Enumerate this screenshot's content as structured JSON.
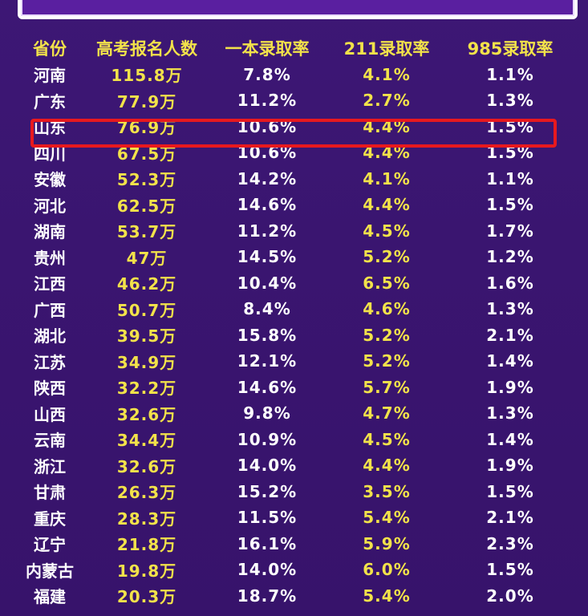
{
  "table": {
    "headers": [
      "省份",
      "高考报名人数",
      "一本录取率",
      "211录取率",
      "985录取率"
    ],
    "rows": [
      {
        "province": "河南",
        "applicants": "115.8万",
        "rate_tier1": "7.8%",
        "rate_211": "4.1%",
        "rate_985": "1.1%"
      },
      {
        "province": "广东",
        "applicants": "77.9万",
        "rate_tier1": "11.2%",
        "rate_211": "2.7%",
        "rate_985": "1.3%"
      },
      {
        "province": "山东",
        "applicants": "76.9万",
        "rate_tier1": "10.6%",
        "rate_211": "4.4%",
        "rate_985": "1.5%"
      },
      {
        "province": "四川",
        "applicants": "67.5万",
        "rate_tier1": "10.6%",
        "rate_211": "4.4%",
        "rate_985": "1.5%"
      },
      {
        "province": "安徽",
        "applicants": "52.3万",
        "rate_tier1": "14.2%",
        "rate_211": "4.1%",
        "rate_985": "1.1%"
      },
      {
        "province": "河北",
        "applicants": "62.5万",
        "rate_tier1": "14.6%",
        "rate_211": "4.4%",
        "rate_985": "1.5%"
      },
      {
        "province": "湖南",
        "applicants": "53.7万",
        "rate_tier1": "11.2%",
        "rate_211": "4.5%",
        "rate_985": "1.7%"
      },
      {
        "province": "贵州",
        "applicants": "47万",
        "rate_tier1": "14.5%",
        "rate_211": "5.2%",
        "rate_985": "1.2%"
      },
      {
        "province": "江西",
        "applicants": "46.2万",
        "rate_tier1": "10.4%",
        "rate_211": "6.5%",
        "rate_985": "1.6%"
      },
      {
        "province": "广西",
        "applicants": "50.7万",
        "rate_tier1": "8.4%",
        "rate_211": "4.6%",
        "rate_985": "1.3%"
      },
      {
        "province": "湖北",
        "applicants": "39.5万",
        "rate_tier1": "15.8%",
        "rate_211": "5.2%",
        "rate_985": "2.1%"
      },
      {
        "province": "江苏",
        "applicants": "34.9万",
        "rate_tier1": "12.1%",
        "rate_211": "5.2%",
        "rate_985": "1.4%"
      },
      {
        "province": "陕西",
        "applicants": "32.2万",
        "rate_tier1": "14.6%",
        "rate_211": "5.7%",
        "rate_985": "1.9%"
      },
      {
        "province": "山西",
        "applicants": "32.6万",
        "rate_tier1": "9.8%",
        "rate_211": "4.7%",
        "rate_985": "1.3%"
      },
      {
        "province": "云南",
        "applicants": "34.4万",
        "rate_tier1": "10.9%",
        "rate_211": "4.5%",
        "rate_985": "1.4%"
      },
      {
        "province": "浙江",
        "applicants": "32.6万",
        "rate_tier1": "14.0%",
        "rate_211": "4.4%",
        "rate_985": "1.9%"
      },
      {
        "province": "甘肃",
        "applicants": "26.3万",
        "rate_tier1": "15.2%",
        "rate_211": "3.5%",
        "rate_985": "1.5%"
      },
      {
        "province": "重庆",
        "applicants": "28.3万",
        "rate_tier1": "11.5%",
        "rate_211": "5.4%",
        "rate_985": "2.1%"
      },
      {
        "province": "辽宁",
        "applicants": "21.8万",
        "rate_tier1": "16.1%",
        "rate_211": "5.9%",
        "rate_985": "2.3%"
      },
      {
        "province": "内蒙古",
        "applicants": "19.8万",
        "rate_tier1": "14.0%",
        "rate_211": "6.0%",
        "rate_985": "1.5%"
      },
      {
        "province": "福建",
        "applicants": "20.3万",
        "rate_tier1": "18.7%",
        "rate_211": "5.4%",
        "rate_985": "2.0%"
      }
    ],
    "highlighted_row": 2
  },
  "colors": {
    "background": "#3a1570",
    "header_text": "#f2e24a",
    "yellow_text": "#f2e24a",
    "white_text": "#ffffff",
    "highlight_border": "#e8191e"
  }
}
